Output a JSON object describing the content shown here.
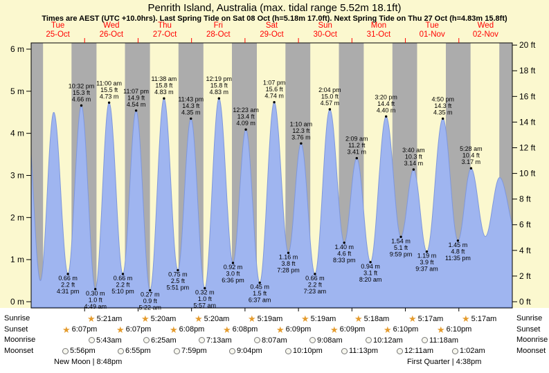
{
  "title": "Penrith Island, Australia (max. tidal range 5.52m 18.1ft)",
  "subtitle": "Times are AEST (UTC +10.0hrs). Last Spring Tide on Sat 08 Oct (h=5.18m 17.0ft). Next Spring Tide on Thu 27 Oct (h=4.83m 15.8ft)",
  "colors": {
    "day": "#fbf8cf",
    "night": "#acacac",
    "tide": "#9fb5f0",
    "tide_edge": "#7e97dc",
    "day_label_red": "#ff0000",
    "star": "#e49b2d"
  },
  "chart_data": {
    "type": "area",
    "title": "Penrith Island tide heights",
    "x_axis": "time (9 days, Tue 25-Oct to Wed 02-Nov, AEST)",
    "y_left": {
      "unit": "m",
      "min": 0,
      "max": 6,
      "step": 1
    },
    "y_right": {
      "unit": "ft",
      "min": 0,
      "max": 20,
      "step": 2
    },
    "days": [
      {
        "label": "Tue",
        "date": "25-Oct"
      },
      {
        "label": "Wed",
        "date": "26-Oct"
      },
      {
        "label": "Thu",
        "date": "27-Oct"
      },
      {
        "label": "Fri",
        "date": "28-Oct"
      },
      {
        "label": "Sat",
        "date": "29-Oct"
      },
      {
        "label": "Sun",
        "date": "30-Oct"
      },
      {
        "label": "Mon",
        "date": "31-Oct"
      },
      {
        "label": "Tue",
        "date": "01-Nov"
      },
      {
        "label": "Wed",
        "date": "02-Nov"
      }
    ],
    "tide_events": [
      {
        "t": 16.517,
        "h": 0.66,
        "type": "low",
        "time": "4:31 pm",
        "ft": "2.2 ft",
        "m": "0.66 m"
      },
      {
        "t": 22.533,
        "h": 4.66,
        "type": "high",
        "time": "10:32 pm",
        "ft": "15.3 ft",
        "m": "4.66 m"
      },
      {
        "t": 28.817,
        "h": 0.3,
        "type": "low",
        "time": "4:49 am",
        "ft": "1.0 ft",
        "m": "0.30 m"
      },
      {
        "t": 35.0,
        "h": 4.73,
        "type": "high",
        "time": "11:00 am",
        "ft": "15.5 ft",
        "m": "4.73 m"
      },
      {
        "t": 41.167,
        "h": 0.66,
        "type": "low",
        "time": "5:10 pm",
        "ft": "2.2 ft",
        "m": "0.66 m"
      },
      {
        "t": 47.117,
        "h": 4.54,
        "type": "high",
        "time": "11:07 pm",
        "ft": "14.9 ft",
        "m": "4.54 m"
      },
      {
        "t": 53.367,
        "h": 0.27,
        "type": "low",
        "time": "5:22 am",
        "ft": "0.9 ft",
        "m": "0.27 m"
      },
      {
        "t": 59.633,
        "h": 4.83,
        "type": "high",
        "time": "11:38 am",
        "ft": "15.8 ft",
        "m": "4.83 m"
      },
      {
        "t": 65.85,
        "h": 0.75,
        "type": "low",
        "time": "5:51 pm",
        "ft": "2.5 ft",
        "m": "0.75 m"
      },
      {
        "t": 71.717,
        "h": 4.35,
        "type": "high",
        "time": "11:43 pm",
        "ft": "14.3 ft",
        "m": "4.35 m"
      },
      {
        "t": 77.95,
        "h": 0.32,
        "type": "low",
        "time": "5:57 am",
        "ft": "1.0 ft",
        "m": "0.32 m"
      },
      {
        "t": 84.317,
        "h": 4.83,
        "type": "high",
        "time": "12:19 pm",
        "ft": "15.8 ft",
        "m": "4.83 m"
      },
      {
        "t": 90.6,
        "h": 0.92,
        "type": "low",
        "time": "6:36 pm",
        "ft": "3.0 ft",
        "m": "0.92 m"
      },
      {
        "t": 96.383,
        "h": 4.09,
        "type": "high",
        "time": "12:23 am",
        "ft": "13.4 ft",
        "m": "4.09 m"
      },
      {
        "t": 102.617,
        "h": 0.45,
        "type": "low",
        "time": "6:37 am",
        "ft": "1.5 ft",
        "m": "0.45 m"
      },
      {
        "t": 109.117,
        "h": 4.74,
        "type": "high",
        "time": "1:07 pm",
        "ft": "15.6 ft",
        "m": "4.74 m"
      },
      {
        "t": 115.467,
        "h": 1.16,
        "type": "low",
        "time": "7:28 pm",
        "ft": "3.8 ft",
        "m": "1.16 m"
      },
      {
        "t": 121.167,
        "h": 3.76,
        "type": "high",
        "time": "1:10 am",
        "ft": "12.3 ft",
        "m": "3.76 m"
      },
      {
        "t": 127.383,
        "h": 0.66,
        "type": "low",
        "time": "7:23 am",
        "ft": "2.2 ft",
        "m": "0.66 m"
      },
      {
        "t": 134.067,
        "h": 4.57,
        "type": "high",
        "time": "2:04 pm",
        "ft": "15.0 ft",
        "m": "4.57 m"
      },
      {
        "t": 140.55,
        "h": 1.4,
        "type": "low",
        "time": "8:33 pm",
        "ft": "4.6 ft",
        "m": "1.40 m"
      },
      {
        "t": 146.15,
        "h": 3.41,
        "type": "high",
        "time": "2:09 am",
        "ft": "11.2 ft",
        "m": "3.41 m"
      },
      {
        "t": 152.333,
        "h": 0.94,
        "type": "low",
        "time": "8:20 am",
        "ft": "3.1 ft",
        "m": "0.94 m"
      },
      {
        "t": 159.333,
        "h": 4.4,
        "type": "high",
        "time": "3:20 pm",
        "ft": "14.4 ft",
        "m": "4.40 m"
      },
      {
        "t": 165.983,
        "h": 1.54,
        "type": "low",
        "time": "9:59 pm",
        "ft": "5.1 ft",
        "m": "1.54 m"
      },
      {
        "t": 171.667,
        "h": 3.14,
        "type": "high",
        "time": "3:40 am",
        "ft": "10.3 ft",
        "m": "3.14 m"
      },
      {
        "t": 177.617,
        "h": 1.19,
        "type": "low",
        "time": "9:37 am",
        "ft": "3.9 ft",
        "m": "1.19 m"
      },
      {
        "t": 184.833,
        "h": 4.35,
        "type": "high",
        "time": "4:50 pm",
        "ft": "14.3 ft",
        "m": "4.35 m"
      },
      {
        "t": 191.583,
        "h": 1.45,
        "type": "low",
        "time": "11:35 pm",
        "ft": "4.8 ft",
        "m": "1.45 m"
      },
      {
        "t": 197.467,
        "h": 3.17,
        "type": "high",
        "time": "5:28 am",
        "ft": "10.4 ft",
        "m": "3.17 m"
      }
    ],
    "shape_points": [
      [
        -2.0,
        4.45
      ],
      [
        4.15,
        0.5
      ],
      [
        10.15,
        4.5
      ],
      [
        203.9,
        1.55
      ],
      [
        210.3,
        2.95
      ],
      [
        218.0,
        1.6
      ]
    ],
    "night_spans": [
      [
        0,
        5.35
      ],
      [
        18.12,
        29.35
      ],
      [
        42.12,
        53.33
      ],
      [
        66.13,
        77.33
      ],
      [
        90.13,
        101.32
      ],
      [
        114.15,
        125.32
      ],
      [
        138.15,
        149.3
      ],
      [
        162.17,
        173.28
      ],
      [
        186.17,
        197.28
      ],
      [
        210.17,
        216
      ]
    ]
  },
  "astro_rows": [
    {
      "id": "sunrise",
      "label": "Sunrise",
      "icon": "star",
      "events": [
        {
          "t": 29.35,
          "time": "5:21am"
        },
        {
          "t": 53.333,
          "time": "5:20am"
        },
        {
          "t": 77.333,
          "time": "5:20am"
        },
        {
          "t": 101.317,
          "time": "5:19am"
        },
        {
          "t": 125.317,
          "time": "5:19am"
        },
        {
          "t": 149.3,
          "time": "5:18am"
        },
        {
          "t": 173.283,
          "time": "5:17am"
        },
        {
          "t": 197.283,
          "time": "5:17am"
        }
      ]
    },
    {
      "id": "sunset",
      "label": "Sunset",
      "icon": "star",
      "events": [
        {
          "t": 18.117,
          "time": "6:07pm"
        },
        {
          "t": 42.117,
          "time": "6:07pm"
        },
        {
          "t": 66.133,
          "time": "6:08pm"
        },
        {
          "t": 90.133,
          "time": "6:08pm"
        },
        {
          "t": 114.15,
          "time": "6:09pm"
        },
        {
          "t": 138.15,
          "time": "6:09pm"
        },
        {
          "t": 162.167,
          "time": "6:10pm"
        },
        {
          "t": 186.167,
          "time": "6:10pm"
        }
      ]
    },
    {
      "id": "moonrise",
      "label": "Moonrise",
      "icon": "moon",
      "events": [
        {
          "t": 29.717,
          "time": "5:43am"
        },
        {
          "t": 54.417,
          "time": "6:25am"
        },
        {
          "t": 79.217,
          "time": "7:13am"
        },
        {
          "t": 104.117,
          "time": "8:07am"
        },
        {
          "t": 129.133,
          "time": "9:08am"
        },
        {
          "t": 154.2,
          "time": "10:12am"
        },
        {
          "t": 179.3,
          "time": "11:18am"
        }
      ]
    },
    {
      "id": "moonset",
      "label": "Moonset",
      "icon": "moon",
      "events": [
        {
          "t": 17.933,
          "time": "5:56pm"
        },
        {
          "t": 42.917,
          "time": "6:55pm"
        },
        {
          "t": 67.983,
          "time": "7:59pm"
        },
        {
          "t": 93.067,
          "time": "9:04pm"
        },
        {
          "t": 118.167,
          "time": "10:10pm"
        },
        {
          "t": 143.217,
          "time": "11:13pm"
        },
        {
          "t": 168.183,
          "time": "12:11am"
        },
        {
          "t": 193.033,
          "time": "1:02am"
        }
      ]
    }
  ],
  "moon_phase_notes": {
    "left": "New Moon | 8:48pm",
    "right": "First Quarter | 4:38pm"
  }
}
